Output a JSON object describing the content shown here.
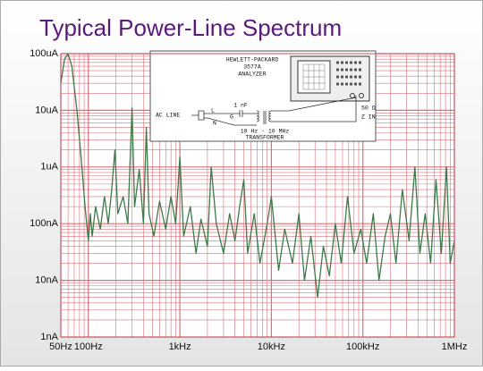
{
  "chart_data": {
    "type": "line",
    "title": "Typical Power-Line Spectrum",
    "x": [
      50,
      55,
      60,
      66,
      75,
      85,
      92,
      100,
      105,
      110,
      120,
      135,
      150,
      165,
      180,
      195,
      210,
      240,
      270,
      300,
      320,
      360,
      400,
      430,
      460,
      520,
      600,
      700,
      800,
      900,
      1000,
      1100,
      1300,
      1500,
      1700,
      2000,
      2200,
      2500,
      3000,
      3500,
      4000,
      4500,
      5000,
      5500,
      6500,
      7500,
      9000,
      10000,
      12000,
      14000,
      17000,
      20000,
      23000,
      27000,
      32000,
      37000,
      43000,
      50000,
      58000,
      68000,
      80000,
      95000,
      110000,
      130000,
      150000,
      175000,
      200000,
      230000,
      270000,
      320000,
      370000,
      420000,
      480000,
      550000,
      630000,
      720000,
      820000,
      900000,
      1000000
    ],
    "values": [
      3e-05,
      8e-05,
      0.0001,
      6e-05,
      1e-05,
      1e-06,
      2e-07,
      5e-08,
      1.5e-07,
      6e-08,
      2e-07,
      8e-08,
      3e-07,
      1e-07,
      4e-07,
      2e-06,
      1.5e-07,
      3e-07,
      1e-07,
      1.1e-05,
      2e-07,
      9e-07,
      1e-07,
      5e-06,
      1.5e-07,
      6e-08,
      2.5e-07,
      8e-08,
      3e-07,
      1e-07,
      1.5e-06,
      6e-08,
      2e-07,
      3e-08,
      1.2e-07,
      4e-08,
      1e-06,
      1e-07,
      3e-08,
      1.5e-07,
      5e-08,
      2e-07,
      6e-07,
      3e-08,
      1.5e-07,
      2e-08,
      1e-07,
      3e-07,
      1.5e-08,
      8e-08,
      2e-08,
      1.5e-07,
      1e-08,
      6e-08,
      5e-09,
      4e-08,
      1.2e-08,
      1e-07,
      2e-08,
      3e-07,
      3e-08,
      8e-08,
      2e-08,
      1.5e-07,
      1e-08,
      6e-08,
      1.5e-07,
      2e-08,
      4e-07,
      5e-08,
      1e-06,
      3e-08,
      1.5e-07,
      2e-08,
      6e-07,
      3e-08,
      1e-06,
      2e-08,
      5e-08
    ],
    "color": "#3d7a4a",
    "xlim": [
      50,
      1000000
    ],
    "ylim": [
      1e-09,
      0.0001
    ],
    "xticks": [
      {
        "value": 50,
        "label": "50Hz"
      },
      {
        "value": 100,
        "label": "100Hz"
      },
      {
        "value": 1000,
        "label": "1kHz"
      },
      {
        "value": 10000,
        "label": "10kHz"
      },
      {
        "value": 100000,
        "label": "100kHz"
      },
      {
        "value": 1000000,
        "label": "1MHz"
      }
    ],
    "yticks": [
      {
        "value": 1e-09,
        "label": "1nA"
      },
      {
        "value": 1e-08,
        "label": "10nA"
      },
      {
        "value": 1e-07,
        "label": "100nA"
      },
      {
        "value": 1e-06,
        "label": "1uA"
      },
      {
        "value": 1e-05,
        "label": "10uA"
      },
      {
        "value": 0.0001,
        "label": "100uA"
      }
    ],
    "log_x": true,
    "log_y": true,
    "grid": true,
    "grid_color": "#d9707a"
  },
  "inset": {
    "brand": "HEWLETT-PACKARD",
    "model": "3577A",
    "device": "ANALYZER",
    "source": "AC LINE",
    "line": "L",
    "neutral": "N",
    "ground": "G",
    "cap": "1 nF",
    "band": "10 Hz - 10 MHz",
    "xfmr": "TRANSFORMER",
    "load": "50 Ω",
    "zin": "Z IN"
  }
}
